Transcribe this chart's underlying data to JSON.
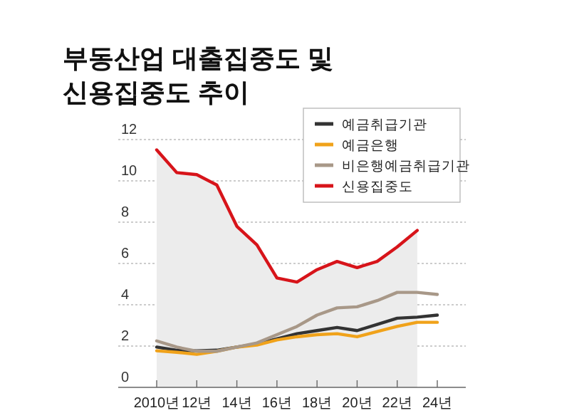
{
  "chart_data": {
    "type": "line",
    "title": "부동산업 대출집중도 및\n신용집중도 추이",
    "categories": [
      "2010년",
      null,
      "12년",
      null,
      "14년",
      null,
      "16년",
      null,
      "18년",
      null,
      "20년",
      null,
      "22년",
      null,
      "24년"
    ],
    "series": [
      {
        "name": "예금취급기관",
        "color": "#333333",
        "values": [
          1.95,
          1.8,
          1.77,
          1.8,
          1.95,
          2.1,
          2.35,
          2.6,
          2.75,
          2.9,
          2.75,
          3.05,
          3.35,
          3.4,
          3.5
        ]
      },
      {
        "name": "예금은행",
        "color": "#f0a21a",
        "values": [
          1.77,
          1.7,
          1.6,
          1.75,
          1.95,
          2.05,
          2.3,
          2.45,
          2.55,
          2.6,
          2.45,
          2.7,
          2.95,
          3.15,
          3.15
        ]
      },
      {
        "name": "비은행예금취급기관",
        "color": "#a89888",
        "values": [
          2.25,
          1.95,
          1.75,
          1.75,
          1.95,
          2.15,
          2.55,
          2.95,
          3.5,
          3.85,
          3.9,
          4.2,
          4.6,
          4.6,
          4.5
        ]
      },
      {
        "name": "신용집중도",
        "type": "area",
        "color": "#d7141a",
        "values": [
          11.5,
          10.4,
          10.3,
          9.8,
          7.8,
          6.9,
          5.3,
          5.1,
          5.7,
          6.1,
          5.8,
          6.1,
          6.8,
          7.6,
          null
        ]
      }
    ],
    "ylim": [
      0,
      12
    ],
    "yticks": [
      0,
      2,
      4,
      6,
      8,
      10,
      12
    ],
    "grid": "y",
    "legend": "top right",
    "marker": "none",
    "line_style": "solid"
  }
}
